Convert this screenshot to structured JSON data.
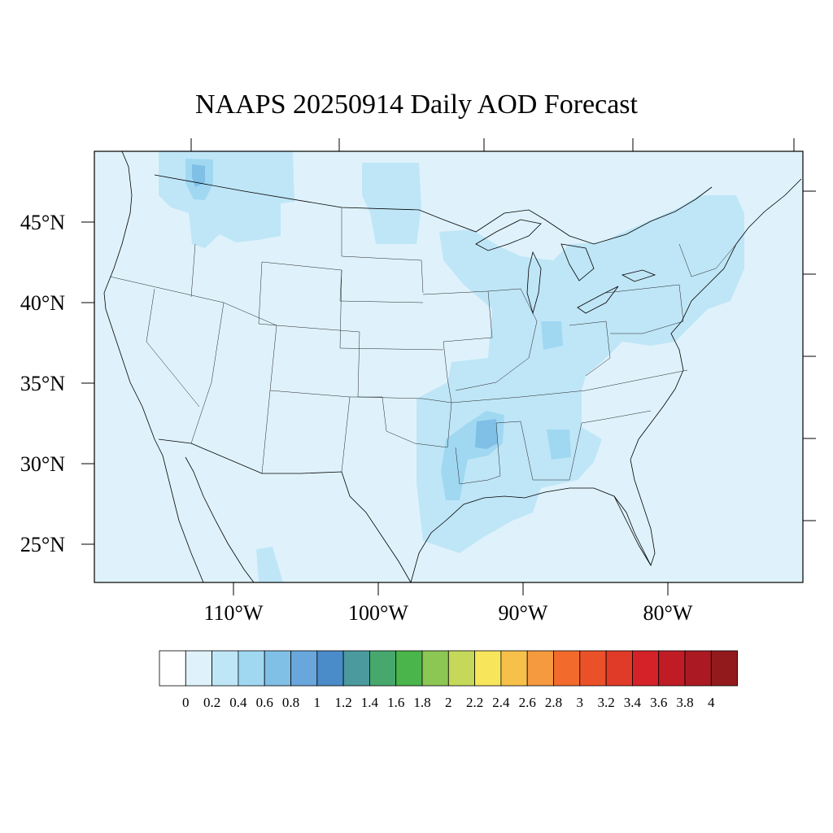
{
  "title": "NAAPS 20250914 Daily AOD Forecast",
  "map": {
    "background_aod_color": "#dff2fb",
    "lat_labels": [
      "45°N",
      "40°N",
      "35°N",
      "30°N",
      "25°N"
    ],
    "lon_labels": [
      "110°W",
      "100°W",
      "90°W",
      "80°W"
    ],
    "lat_values": [
      45,
      40,
      35,
      30,
      25
    ],
    "lon_values": [
      -110,
      -100,
      -90,
      -80
    ]
  },
  "colorbar": {
    "labels": [
      "0",
      "0.2",
      "0.4",
      "0.6",
      "0.8",
      "1",
      "1.2",
      "1.4",
      "1.6",
      "1.8",
      "2",
      "2.2",
      "2.4",
      "2.6",
      "2.8",
      "3",
      "3.2",
      "3.4",
      "3.6",
      "3.8",
      "4"
    ],
    "colors": [
      "#ffffff",
      "#dff2fb",
      "#bfe6f7",
      "#a0d8f2",
      "#80bfe6",
      "#68a6db",
      "#4a8bc9",
      "#4a9a9e",
      "#47a86e",
      "#4ab54a",
      "#8cc653",
      "#c6d85a",
      "#f7e65c",
      "#f7c04a",
      "#f59a3f",
      "#f26b2c",
      "#eb5129",
      "#e03a28",
      "#d42228",
      "#bf1c26",
      "#ab1a22",
      "#931a1c"
    ]
  }
}
